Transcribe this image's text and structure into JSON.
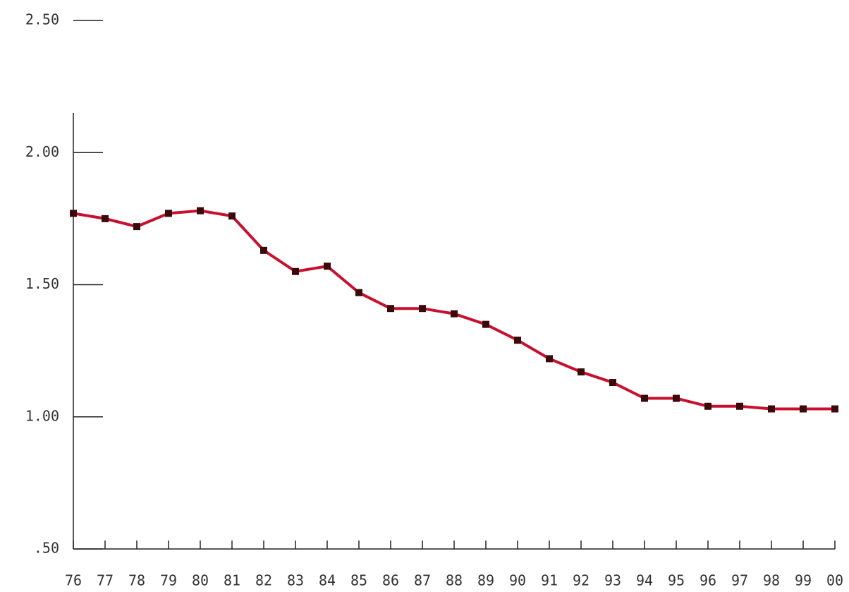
{
  "chart_data": {
    "type": "line",
    "categories": [
      "76",
      "77",
      "78",
      "79",
      "80",
      "81",
      "82",
      "83",
      "84",
      "85",
      "86",
      "87",
      "88",
      "89",
      "90",
      "91",
      "92",
      "93",
      "94",
      "95",
      "96",
      "97",
      "98",
      "99",
      "00"
    ],
    "series": [
      {
        "color": "#c8102e",
        "values": [
          1.77,
          1.75,
          1.72,
          1.77,
          1.78,
          1.76,
          1.63,
          1.55,
          1.57,
          1.47,
          1.41,
          1.41,
          1.39,
          1.35,
          1.29,
          1.22,
          1.17,
          1.13,
          1.07,
          1.07,
          1.04,
          1.04,
          1.03,
          1.03,
          1.03
        ]
      }
    ],
    "ylim": [
      0.5,
      2.5
    ],
    "yticks": [
      {
        "value": 0.5,
        "label": ".50"
      },
      {
        "value": 1,
        "label": "1.00"
      },
      {
        "value": 1.5,
        "label": "1.50"
      },
      {
        "value": 2,
        "label": "2.00"
      },
      {
        "value": 2.5,
        "label": "2.50"
      }
    ]
  }
}
